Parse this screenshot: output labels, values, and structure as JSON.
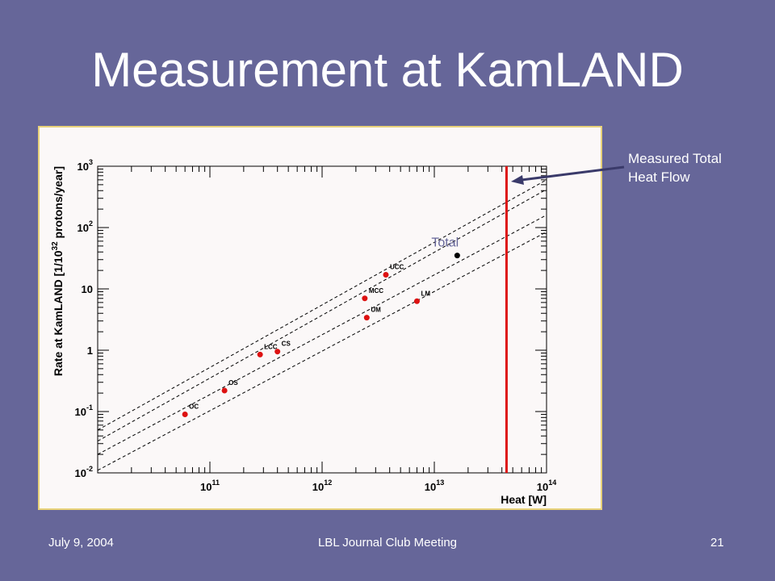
{
  "slide": {
    "title": "Measurement at KamLAND",
    "annotation_line1": "Measured Total",
    "annotation_line2": "Heat Flow",
    "footer_date": "July 9, 2004",
    "footer_event": "LBL Journal Club Meeting",
    "footer_page": "21"
  },
  "colors": {
    "background": "#666699",
    "points": "#dd1111",
    "total_point": "#000000",
    "measured_line": "#dd1111",
    "arrow": "#3a3a6a"
  },
  "chart_data": {
    "type": "scatter",
    "title": "",
    "xlabel": "Heat [W]",
    "ylabel_prefix": "Rate at KamLAND [1/10",
    "ylabel_sup": "32",
    "ylabel_suffix": " protons/year]",
    "xscale": "log",
    "yscale": "log",
    "xlim": [
      10000000000.0,
      100000000000000.0
    ],
    "ylim": [
      0.01,
      1000
    ],
    "x_ticks": [
      {
        "value": 100000000000.0,
        "base": "10",
        "exp": "11"
      },
      {
        "value": 1000000000000.0,
        "base": "10",
        "exp": "12"
      },
      {
        "value": 10000000000000.0,
        "base": "10",
        "exp": "13"
      },
      {
        "value": 100000000000000.0,
        "base": "10",
        "exp": "14"
      }
    ],
    "y_ticks": [
      {
        "value": 0.01,
        "base": "10",
        "exp": "-2"
      },
      {
        "value": 0.1,
        "base": "10",
        "exp": "-1"
      },
      {
        "value": 1,
        "base": "1",
        "exp": ""
      },
      {
        "value": 10,
        "base": "10",
        "exp": ""
      },
      {
        "value": 100,
        "base": "10",
        "exp": "2"
      },
      {
        "value": 1000,
        "base": "10",
        "exp": "3"
      }
    ],
    "points": [
      {
        "label": "OC",
        "x": 60000000000.0,
        "y": 0.09
      },
      {
        "label": "OS",
        "x": 135000000000.0,
        "y": 0.22
      },
      {
        "label": "LCC",
        "x": 280000000000.0,
        "y": 0.85
      },
      {
        "label": "CS",
        "x": 400000000000.0,
        "y": 0.95
      },
      {
        "label": "MCC",
        "x": 2400000000000.0,
        "y": 7.0
      },
      {
        "label": "UM",
        "x": 2500000000000.0,
        "y": 3.4
      },
      {
        "label": "UCC",
        "x": 3700000000000.0,
        "y": 17.0
      },
      {
        "label": "LM",
        "x": 7000000000000.0,
        "y": 6.3
      }
    ],
    "total_point": {
      "label": "Total",
      "x": 16000000000000.0,
      "y": 35
    },
    "measured_heat": 44000000000000.0,
    "reference_lines": [
      {
        "y_at_xmin": 0.05,
        "y_at_xmax": 600
      },
      {
        "y_at_xmin": 0.033,
        "y_at_xmax": 420
      },
      {
        "y_at_xmin": 0.02,
        "y_at_xmax": 160
      },
      {
        "y_at_xmin": 0.011,
        "y_at_xmax": 85
      }
    ]
  }
}
